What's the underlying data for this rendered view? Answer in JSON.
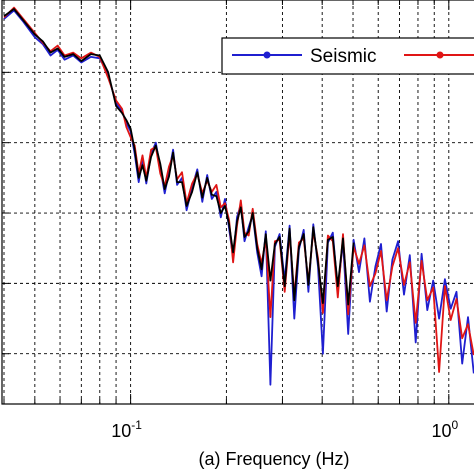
{
  "chart_data": {
    "type": "line",
    "xlabel": "(a) Frequency (Hz)",
    "x_scale": "log",
    "xlim": [
      0.04,
      1.2
    ],
    "x_ticks": [
      {
        "value": 0.1,
        "base": "10",
        "exp": "-1"
      },
      {
        "value": 1,
        "base": "10",
        "exp": "0"
      }
    ],
    "grid": true,
    "legend_position": "top-right",
    "series": [
      {
        "name": "Seismic",
        "color": "#1f1fd0",
        "points": [
          [
            0.04,
            -1.2
          ],
          [
            0.043,
            -0.6
          ],
          [
            0.046,
            -1.4
          ],
          [
            0.05,
            -2.5
          ],
          [
            0.053,
            -3.0
          ],
          [
            0.056,
            -3.8
          ],
          [
            0.059,
            -3.4
          ],
          [
            0.062,
            -4.1
          ],
          [
            0.066,
            -3.8
          ],
          [
            0.07,
            -4.3
          ],
          [
            0.075,
            -3.9
          ],
          [
            0.08,
            -4.0
          ],
          [
            0.085,
            -5.2
          ],
          [
            0.09,
            -7.2
          ],
          [
            0.094,
            -7.8
          ],
          [
            0.097,
            -8.6
          ],
          [
            0.1,
            -9.2
          ],
          [
            0.103,
            -10.8
          ],
          [
            0.106,
            -12.8
          ],
          [
            0.109,
            -11.2
          ],
          [
            0.112,
            -12.9
          ],
          [
            0.116,
            -10.8
          ],
          [
            0.12,
            -10.0
          ],
          [
            0.124,
            -11.8
          ],
          [
            0.128,
            -13.6
          ],
          [
            0.132,
            -12.1
          ],
          [
            0.136,
            -10.5
          ],
          [
            0.14,
            -13.0
          ],
          [
            0.145,
            -12.5
          ],
          [
            0.15,
            -14.8
          ],
          [
            0.156,
            -13.2
          ],
          [
            0.162,
            -11.9
          ],
          [
            0.168,
            -14.2
          ],
          [
            0.174,
            -12.3
          ],
          [
            0.18,
            -14.0
          ],
          [
            0.186,
            -13.5
          ],
          [
            0.192,
            -15.3
          ],
          [
            0.198,
            -14.0
          ],
          [
            0.204,
            -16.1
          ],
          [
            0.21,
            -18.2
          ],
          [
            0.216,
            -15.3
          ],
          [
            0.222,
            -14.4
          ],
          [
            0.228,
            -17.0
          ],
          [
            0.235,
            -16.0
          ],
          [
            0.242,
            -15.1
          ],
          [
            0.25,
            -17.8
          ],
          [
            0.258,
            -19.5
          ],
          [
            0.266,
            -16.3
          ],
          [
            0.275,
            -27.2
          ],
          [
            0.284,
            -17.4
          ],
          [
            0.294,
            -16.5
          ],
          [
            0.305,
            -19.8
          ],
          [
            0.316,
            -15.9
          ],
          [
            0.327,
            -22.5
          ],
          [
            0.338,
            -17.6
          ],
          [
            0.35,
            -16.2
          ],
          [
            0.362,
            -20.6
          ],
          [
            0.375,
            -15.8
          ],
          [
            0.388,
            -18.8
          ],
          [
            0.402,
            -25.0
          ],
          [
            0.417,
            -17.1
          ],
          [
            0.432,
            -16.4
          ],
          [
            0.448,
            -20.5
          ],
          [
            0.465,
            -17.0
          ],
          [
            0.483,
            -23.6
          ],
          [
            0.502,
            -16.9
          ],
          [
            0.522,
            -19.2
          ],
          [
            0.543,
            -16.8
          ],
          [
            0.565,
            -21.3
          ],
          [
            0.588,
            -18.8
          ],
          [
            0.612,
            -17.2
          ],
          [
            0.638,
            -22.0
          ],
          [
            0.665,
            -18.3
          ],
          [
            0.693,
            -17.0
          ],
          [
            0.723,
            -20.8
          ],
          [
            0.754,
            -18.0
          ],
          [
            0.787,
            -24.2
          ],
          [
            0.821,
            -17.9
          ],
          [
            0.856,
            -21.9
          ],
          [
            0.893,
            -19.8
          ],
          [
            0.932,
            -22.5
          ],
          [
            0.972,
            -19.7
          ],
          [
            1.014,
            -21.8
          ],
          [
            1.057,
            -20.6
          ],
          [
            1.102,
            -25.7
          ],
          [
            1.149,
            -22.4
          ],
          [
            1.198,
            -26.4
          ]
        ]
      },
      {
        "color": "#e01515",
        "points": [
          [
            0.04,
            -1.1
          ],
          [
            0.043,
            -0.4
          ],
          [
            0.046,
            -1.2
          ],
          [
            0.05,
            -2.2
          ],
          [
            0.053,
            -2.9
          ],
          [
            0.056,
            -3.5
          ],
          [
            0.059,
            -3.1
          ],
          [
            0.062,
            -3.8
          ],
          [
            0.066,
            -3.6
          ],
          [
            0.07,
            -4.0
          ],
          [
            0.075,
            -3.6
          ],
          [
            0.08,
            -3.9
          ],
          [
            0.085,
            -5.4
          ],
          [
            0.09,
            -7.0
          ],
          [
            0.094,
            -7.6
          ],
          [
            0.097,
            -8.9
          ],
          [
            0.1,
            -9.6
          ],
          [
            0.103,
            -10.2
          ],
          [
            0.106,
            -12.2
          ],
          [
            0.109,
            -10.9
          ],
          [
            0.112,
            -12.5
          ],
          [
            0.116,
            -10.5
          ],
          [
            0.12,
            -10.3
          ],
          [
            0.124,
            -12.2
          ],
          [
            0.128,
            -13.1
          ],
          [
            0.132,
            -11.7
          ],
          [
            0.136,
            -10.9
          ],
          [
            0.14,
            -12.6
          ],
          [
            0.145,
            -12.1
          ],
          [
            0.15,
            -14.3
          ],
          [
            0.156,
            -12.9
          ],
          [
            0.162,
            -12.2
          ],
          [
            0.168,
            -13.6
          ],
          [
            0.174,
            -12.7
          ],
          [
            0.18,
            -13.5
          ],
          [
            0.186,
            -13.0
          ],
          [
            0.192,
            -14.6
          ],
          [
            0.198,
            -14.3
          ],
          [
            0.204,
            -15.5
          ],
          [
            0.21,
            -18.5
          ],
          [
            0.216,
            -15.9
          ],
          [
            0.222,
            -14.1
          ],
          [
            0.228,
            -16.4
          ],
          [
            0.235,
            -16.6
          ],
          [
            0.242,
            -14.7
          ],
          [
            0.25,
            -17.2
          ],
          [
            0.258,
            -18.6
          ],
          [
            0.266,
            -16.8
          ],
          [
            0.275,
            -22.4
          ],
          [
            0.284,
            -17.0
          ],
          [
            0.294,
            -16.9
          ],
          [
            0.305,
            -20.6
          ],
          [
            0.316,
            -16.4
          ],
          [
            0.327,
            -20.9
          ],
          [
            0.338,
            -17.1
          ],
          [
            0.35,
            -16.8
          ],
          [
            0.362,
            -19.9
          ],
          [
            0.375,
            -16.3
          ],
          [
            0.388,
            -18.2
          ],
          [
            0.402,
            -22.1
          ],
          [
            0.417,
            -16.6
          ],
          [
            0.432,
            -17.0
          ],
          [
            0.448,
            -21.0
          ],
          [
            0.465,
            -16.5
          ],
          [
            0.483,
            -22.2
          ],
          [
            0.502,
            -17.4
          ],
          [
            0.522,
            -18.6
          ],
          [
            0.543,
            -17.3
          ],
          [
            0.565,
            -20.2
          ],
          [
            0.588,
            -19.3
          ],
          [
            0.612,
            -17.7
          ],
          [
            0.638,
            -21.2
          ],
          [
            0.665,
            -18.8
          ],
          [
            0.693,
            -17.5
          ],
          [
            0.723,
            -20.1
          ],
          [
            0.754,
            -18.5
          ],
          [
            0.787,
            -22.8
          ],
          [
            0.821,
            -18.4
          ],
          [
            0.856,
            -21.2
          ],
          [
            0.893,
            -20.3
          ],
          [
            0.932,
            -26.3
          ],
          [
            0.972,
            -20.2
          ],
          [
            1.014,
            -22.6
          ],
          [
            1.057,
            -21.1
          ],
          [
            1.102,
            -23.9
          ],
          [
            1.149,
            -22.9
          ],
          [
            1.198,
            -25.1
          ]
        ]
      },
      {
        "color": "#000000",
        "points": [
          [
            0.04,
            -1.0
          ],
          [
            0.043,
            -0.5
          ],
          [
            0.046,
            -1.3
          ],
          [
            0.05,
            -2.3
          ],
          [
            0.053,
            -2.8
          ],
          [
            0.056,
            -3.6
          ],
          [
            0.059,
            -3.3
          ],
          [
            0.062,
            -3.9
          ],
          [
            0.066,
            -3.7
          ],
          [
            0.07,
            -4.2
          ],
          [
            0.075,
            -3.7
          ],
          [
            0.08,
            -3.8
          ],
          [
            0.085,
            -5.0
          ],
          [
            0.09,
            -7.4
          ],
          [
            0.094,
            -7.9
          ],
          [
            0.097,
            -8.4
          ],
          [
            0.1,
            -9.0
          ],
          [
            0.103,
            -10.5
          ],
          [
            0.106,
            -12.5
          ],
          [
            0.109,
            -11.6
          ],
          [
            0.112,
            -12.7
          ],
          [
            0.116,
            -11.0
          ],
          [
            0.12,
            -10.2
          ],
          [
            0.124,
            -11.5
          ],
          [
            0.128,
            -13.3
          ],
          [
            0.132,
            -12.4
          ],
          [
            0.136,
            -10.7
          ],
          [
            0.14,
            -12.8
          ],
          [
            0.145,
            -12.8
          ],
          [
            0.15,
            -14.5
          ],
          [
            0.156,
            -13.5
          ],
          [
            0.162,
            -12.1
          ],
          [
            0.168,
            -13.9
          ],
          [
            0.174,
            -12.5
          ],
          [
            0.18,
            -13.7
          ],
          [
            0.186,
            -13.8
          ],
          [
            0.192,
            -15.0
          ],
          [
            0.198,
            -14.5
          ],
          [
            0.204,
            -15.8
          ],
          [
            0.21,
            -17.8
          ],
          [
            0.216,
            -15.6
          ],
          [
            0.222,
            -14.6
          ],
          [
            0.228,
            -16.7
          ],
          [
            0.235,
            -16.3
          ],
          [
            0.242,
            -15.0
          ],
          [
            0.25,
            -17.5
          ],
          [
            0.258,
            -19.0
          ],
          [
            0.266,
            -16.5
          ],
          [
            0.275,
            -19.8
          ],
          [
            0.284,
            -17.2
          ],
          [
            0.294,
            -16.7
          ],
          [
            0.305,
            -20.2
          ],
          [
            0.316,
            -16.1
          ],
          [
            0.327,
            -21.2
          ],
          [
            0.338,
            -17.4
          ],
          [
            0.35,
            -16.5
          ],
          [
            0.362,
            -20.1
          ],
          [
            0.375,
            -16.0
          ],
          [
            0.388,
            -18.5
          ],
          [
            0.402,
            -21.4
          ],
          [
            0.417,
            -16.9
          ],
          [
            0.432,
            -16.7
          ],
          [
            0.448,
            -20.2
          ],
          [
            0.465,
            -16.8
          ],
          [
            0.483,
            -21.5
          ],
          [
            0.502,
            -17.1
          ]
        ]
      }
    ]
  },
  "legend": {
    "seismic_label": "Seismic"
  },
  "colors": {
    "grid": "#000000",
    "axis": "#000000",
    "background": "#ffffff"
  }
}
